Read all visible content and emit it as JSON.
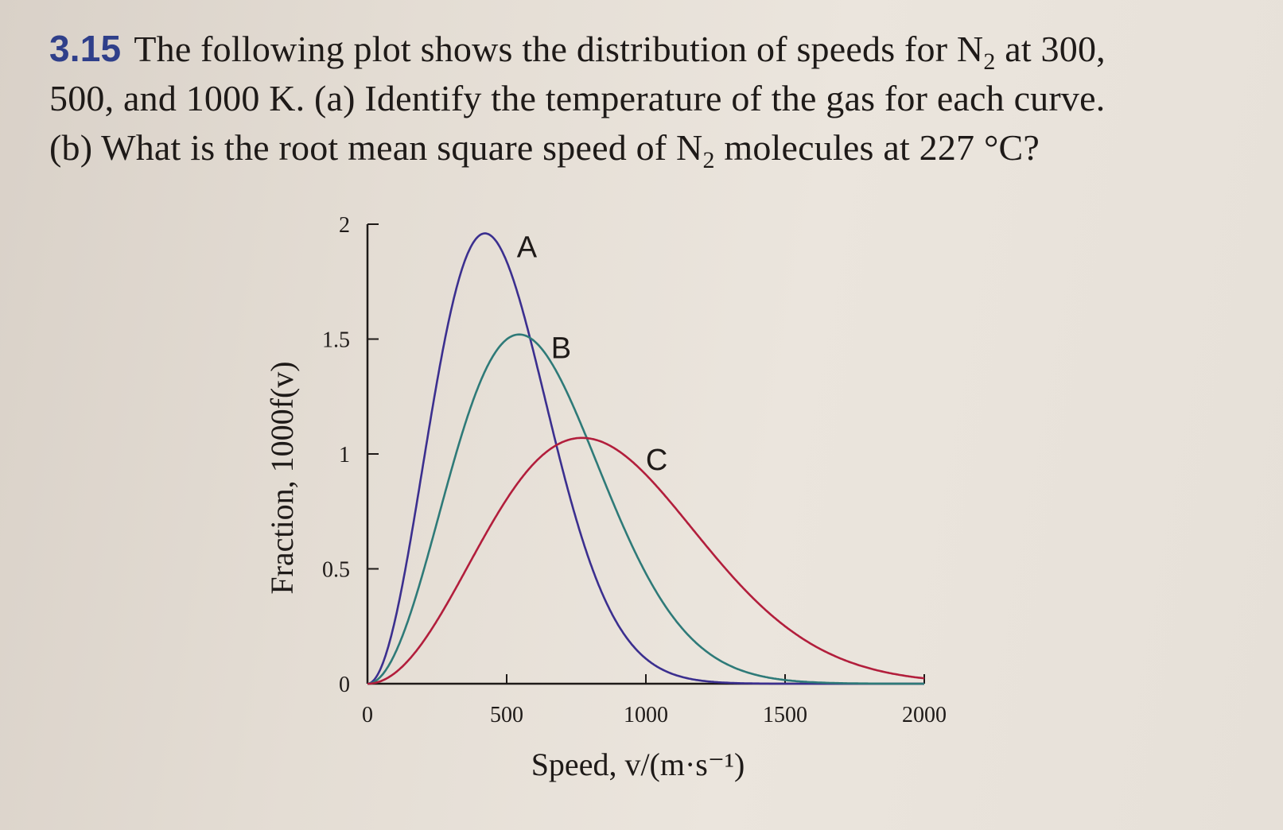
{
  "problem": {
    "number": "3.15",
    "line1_pre": "The following plot shows the distribution of speeds for N",
    "line1_sub": "2",
    "line1_post": " at 300,",
    "line2": "500, and 1000 K. (a) Identify the temperature of the gas for each curve.",
    "line3_pre": "(b) What is the root mean square speed of N",
    "line3_sub": "2",
    "line3_post": " molecules at 227 °C?"
  },
  "chart_data": {
    "type": "line",
    "xlabel": "Speed, v/(m·s⁻¹)",
    "ylabel": "Fraction, 1000f(v)",
    "xlim": [
      0,
      2000
    ],
    "ylim": [
      0,
      2
    ],
    "xticks": [
      0,
      500,
      1000,
      1500,
      2000
    ],
    "yticks": [
      0,
      0.5,
      1,
      1.5,
      2
    ],
    "x_tick_labels": [
      "0",
      "500",
      "1000",
      "1500",
      "2000"
    ],
    "y_tick_labels": [
      "0",
      "0.5",
      "1",
      "1.5",
      "2"
    ],
    "grid": false,
    "series": [
      {
        "name": "A",
        "color": "#3b2f8f",
        "peak_speed": 422,
        "peak_value": 1.96
      },
      {
        "name": "B",
        "color": "#2e7a78",
        "peak_speed": 545,
        "peak_value": 1.52
      },
      {
        "name": "C",
        "color": "#b21e3c",
        "peak_speed": 771,
        "peak_value": 1.07
      }
    ]
  }
}
